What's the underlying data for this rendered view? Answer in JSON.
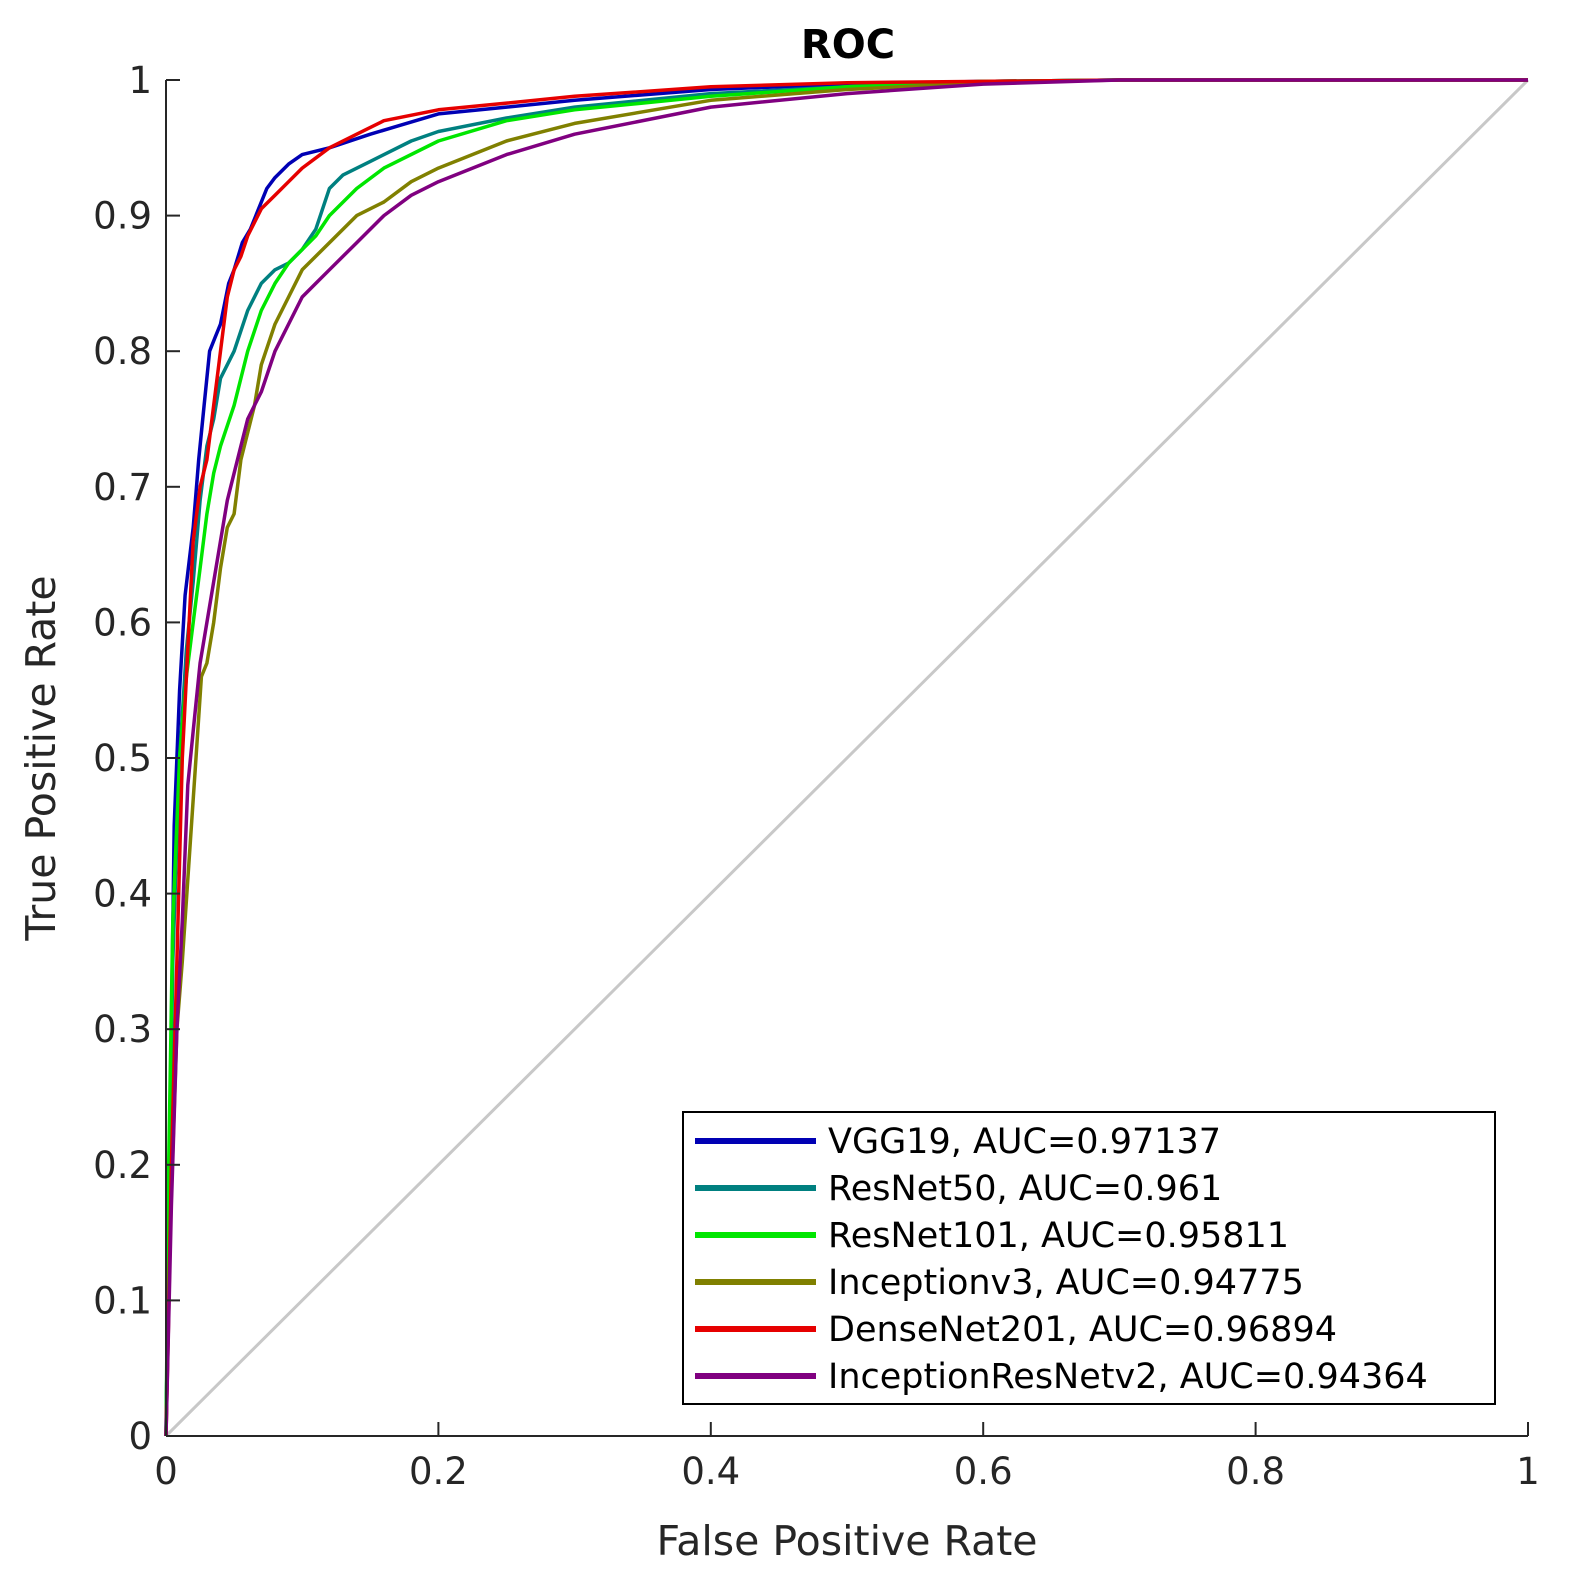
{
  "chart_data": {
    "type": "line",
    "title": "ROC",
    "xlabel": "False Positive Rate",
    "ylabel": "True Positive Rate",
    "xlim": [
      0,
      1
    ],
    "ylim": [
      0,
      1
    ],
    "xticks": [
      0,
      0.2,
      0.4,
      0.6,
      0.8,
      1
    ],
    "xtick_labels": [
      "0",
      "0.2",
      "0.4",
      "0.6",
      "0.8",
      "1"
    ],
    "yticks": [
      0,
      0.1,
      0.2,
      0.3,
      0.4,
      0.5,
      0.6,
      0.7,
      0.8,
      0.9,
      1
    ],
    "ytick_labels": [
      "0",
      "0.1",
      "0.2",
      "0.3",
      "0.4",
      "0.5",
      "0.6",
      "0.7",
      "0.8",
      "0.9",
      "1"
    ],
    "grid": false,
    "legend_position": "bottom-right",
    "reference_line": {
      "name": "chance",
      "color": "#c8c8c8",
      "x": [
        0,
        1
      ],
      "y": [
        0,
        1
      ]
    },
    "series": [
      {
        "name": "VGG19, AUC=0.97137",
        "color": "#0000b4",
        "x": [
          0,
          0.002,
          0.004,
          0.006,
          0.01,
          0.014,
          0.02,
          0.024,
          0.028,
          0.032,
          0.036,
          0.04,
          0.046,
          0.05,
          0.056,
          0.062,
          0.068,
          0.074,
          0.08,
          0.09,
          0.1,
          0.12,
          0.15,
          0.2,
          0.25,
          0.3,
          0.4,
          0.5,
          0.6,
          0.7,
          1
        ],
        "y": [
          0,
          0.15,
          0.3,
          0.45,
          0.55,
          0.62,
          0.67,
          0.72,
          0.76,
          0.8,
          0.81,
          0.82,
          0.85,
          0.86,
          0.88,
          0.89,
          0.905,
          0.92,
          0.928,
          0.938,
          0.945,
          0.95,
          0.96,
          0.975,
          0.98,
          0.985,
          0.993,
          0.997,
          0.999,
          1,
          1
        ]
      },
      {
        "name": "ResNet50, AUC=0.961",
        "color": "#008080",
        "x": [
          0,
          0.002,
          0.005,
          0.01,
          0.015,
          0.02,
          0.025,
          0.03,
          0.035,
          0.04,
          0.05,
          0.06,
          0.07,
          0.08,
          0.09,
          0.1,
          0.11,
          0.12,
          0.13,
          0.15,
          0.18,
          0.2,
          0.25,
          0.3,
          0.4,
          0.5,
          0.6,
          0.7,
          1
        ],
        "y": [
          0,
          0.15,
          0.35,
          0.5,
          0.58,
          0.63,
          0.69,
          0.73,
          0.75,
          0.78,
          0.8,
          0.83,
          0.85,
          0.86,
          0.865,
          0.875,
          0.89,
          0.92,
          0.93,
          0.94,
          0.955,
          0.962,
          0.972,
          0.98,
          0.99,
          0.995,
          0.999,
          1,
          1
        ]
      },
      {
        "name": "ResNet101, AUC=0.95811",
        "color": "#00e600",
        "x": [
          0,
          0.002,
          0.005,
          0.01,
          0.015,
          0.02,
          0.025,
          0.03,
          0.035,
          0.04,
          0.05,
          0.06,
          0.07,
          0.08,
          0.09,
          0.1,
          0.11,
          0.12,
          0.14,
          0.16,
          0.2,
          0.25,
          0.3,
          0.4,
          0.5,
          0.6,
          0.7,
          1
        ],
        "y": [
          0,
          0.2,
          0.38,
          0.5,
          0.56,
          0.6,
          0.64,
          0.68,
          0.71,
          0.73,
          0.76,
          0.8,
          0.83,
          0.85,
          0.865,
          0.875,
          0.885,
          0.9,
          0.92,
          0.935,
          0.955,
          0.97,
          0.978,
          0.988,
          0.995,
          0.999,
          1,
          1
        ]
      },
      {
        "name": "Inceptionv3, AUC=0.94775",
        "color": "#808000",
        "x": [
          0,
          0.003,
          0.008,
          0.012,
          0.018,
          0.022,
          0.026,
          0.03,
          0.035,
          0.04,
          0.045,
          0.05,
          0.055,
          0.06,
          0.065,
          0.07,
          0.08,
          0.09,
          0.1,
          0.12,
          0.14,
          0.16,
          0.18,
          0.2,
          0.25,
          0.3,
          0.4,
          0.5,
          0.6,
          0.7,
          1
        ],
        "y": [
          0,
          0.15,
          0.3,
          0.35,
          0.44,
          0.5,
          0.56,
          0.57,
          0.6,
          0.64,
          0.67,
          0.68,
          0.72,
          0.74,
          0.76,
          0.79,
          0.82,
          0.84,
          0.86,
          0.88,
          0.9,
          0.91,
          0.925,
          0.935,
          0.955,
          0.968,
          0.985,
          0.993,
          0.998,
          1,
          1
        ]
      },
      {
        "name": "DenseNet201, AUC=0.96894",
        "color": "#e60000",
        "x": [
          0,
          0.002,
          0.004,
          0.008,
          0.012,
          0.016,
          0.02,
          0.025,
          0.03,
          0.035,
          0.04,
          0.045,
          0.05,
          0.055,
          0.06,
          0.065,
          0.07,
          0.08,
          0.09,
          0.1,
          0.12,
          0.14,
          0.16,
          0.2,
          0.25,
          0.3,
          0.4,
          0.5,
          0.6,
          0.7,
          1
        ],
        "y": [
          0,
          0.09,
          0.2,
          0.35,
          0.5,
          0.58,
          0.66,
          0.7,
          0.72,
          0.76,
          0.8,
          0.84,
          0.86,
          0.87,
          0.885,
          0.895,
          0.905,
          0.915,
          0.925,
          0.935,
          0.95,
          0.96,
          0.97,
          0.978,
          0.983,
          0.988,
          0.995,
          0.998,
          0.999,
          1,
          1
        ]
      },
      {
        "name": "InceptionResNetv2, AUC=0.94364",
        "color": "#800080",
        "x": [
          0,
          0.004,
          0.008,
          0.012,
          0.016,
          0.02,
          0.025,
          0.03,
          0.035,
          0.04,
          0.045,
          0.05,
          0.055,
          0.06,
          0.065,
          0.07,
          0.08,
          0.09,
          0.1,
          0.11,
          0.12,
          0.14,
          0.16,
          0.18,
          0.2,
          0.25,
          0.3,
          0.4,
          0.5,
          0.6,
          0.7,
          1
        ],
        "y": [
          0,
          0.17,
          0.3,
          0.38,
          0.48,
          0.52,
          0.57,
          0.6,
          0.63,
          0.66,
          0.69,
          0.71,
          0.73,
          0.75,
          0.76,
          0.77,
          0.8,
          0.82,
          0.84,
          0.85,
          0.86,
          0.88,
          0.9,
          0.915,
          0.925,
          0.945,
          0.96,
          0.98,
          0.99,
          0.997,
          1,
          1
        ]
      }
    ]
  }
}
